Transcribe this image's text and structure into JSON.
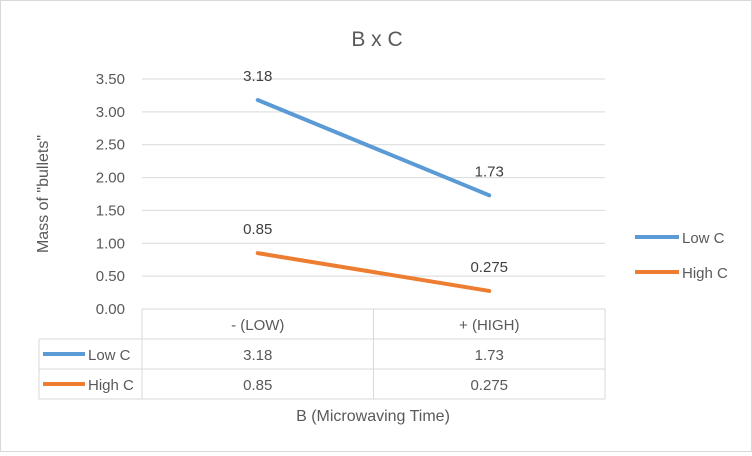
{
  "chart_data": {
    "type": "line",
    "title": "B x C",
    "xlabel": "B (Microwaving Time)",
    "ylabel": "Mass of \"bullets\"",
    "categories": [
      "- (LOW)",
      "+ (HIGH)"
    ],
    "ylim": [
      0,
      3.5
    ],
    "yticks": [
      "0.00",
      "0.50",
      "1.00",
      "1.50",
      "2.00",
      "2.50",
      "3.00",
      "3.50"
    ],
    "grid": true,
    "legend_position": "right",
    "series": [
      {
        "name": "Low C",
        "values": [
          3.18,
          1.73
        ],
        "labels": [
          "3.18",
          "1.73"
        ],
        "color": "#5b9bd5"
      },
      {
        "name": "High C",
        "values": [
          0.85,
          0.275
        ],
        "labels": [
          "0.85",
          "0.275"
        ],
        "color": "#ed7d31"
      }
    ]
  }
}
